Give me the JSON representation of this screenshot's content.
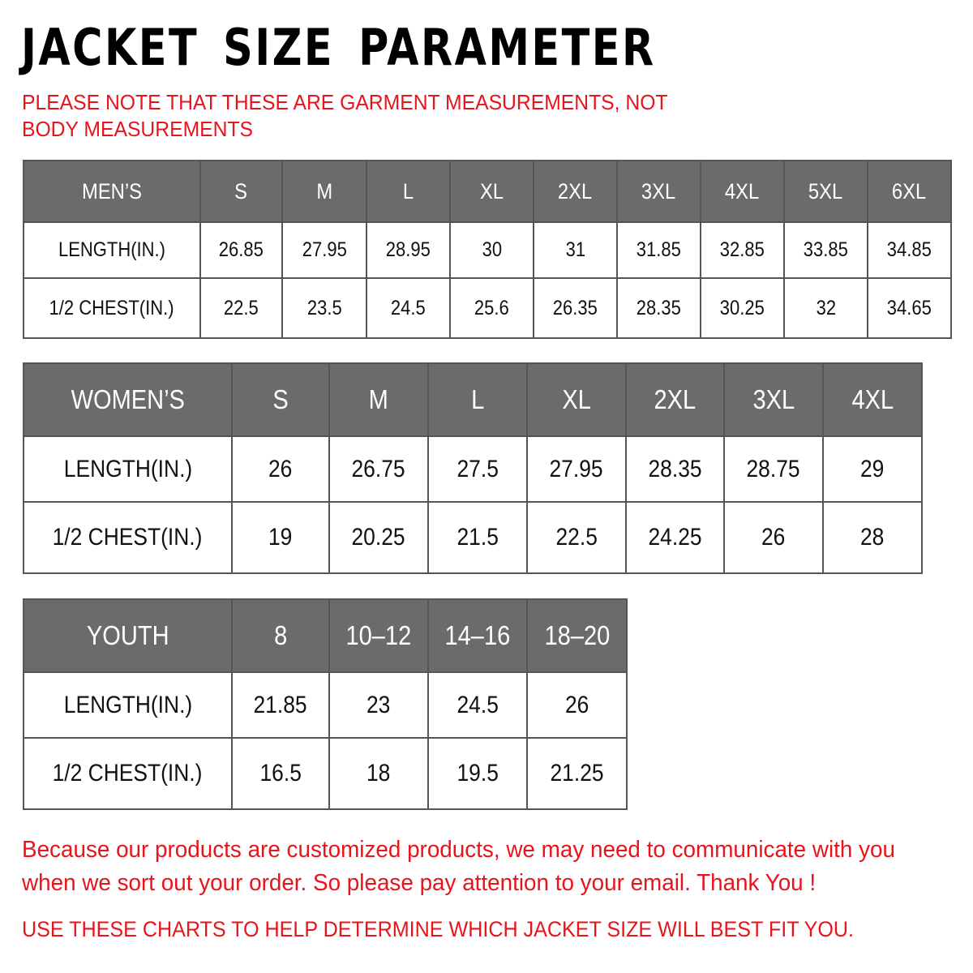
{
  "title": "JACKET SIZE PARAMETER",
  "note": "PLEASE NOTE THAT THESE ARE GARMENT MEASUREMENTS, NOT BODY MEASUREMENTS",
  "tables": {
    "men": {
      "header": [
        "MEN’S",
        "S",
        "M",
        "L",
        "XL",
        "2XL",
        "3XL",
        "4XL",
        "5XL",
        "6XL"
      ],
      "rows": [
        [
          "LENGTH(IN.)",
          "26.85",
          "27.95",
          "28.95",
          "30",
          "31",
          "31.85",
          "32.85",
          "33.85",
          "34.85"
        ],
        [
          "1/2 CHEST(IN.)",
          "22.5",
          "23.5",
          "24.5",
          "25.6",
          "26.35",
          "28.35",
          "30.25",
          "32",
          "34.65"
        ]
      ]
    },
    "women": {
      "header": [
        "WOMEN’S",
        "S",
        "M",
        "L",
        "XL",
        "2XL",
        "3XL",
        "4XL"
      ],
      "rows": [
        [
          "LENGTH(IN.)",
          "26",
          "26.75",
          "27.5",
          "27.95",
          "28.35",
          "28.75",
          "29"
        ],
        [
          "1/2 CHEST(IN.)",
          "19",
          "20.25",
          "21.5",
          "22.5",
          "24.25",
          "26",
          "28"
        ]
      ]
    },
    "youth": {
      "header": [
        "YOUTH",
        "8",
        "10–12",
        "14–16",
        "18–20"
      ],
      "rows": [
        [
          "LENGTH(IN.)",
          "21.85",
          "23",
          "24.5",
          "26"
        ],
        [
          "1/2 CHEST(IN.)",
          "16.5",
          "18",
          "19.5",
          "21.25"
        ]
      ]
    }
  },
  "footer": {
    "message": "Because our products are customized products, we may need to communicate with you when we sort out your order. So please pay attention to your email. Thank You !",
    "advice": "USE THESE CHARTS TO HELP DETERMINE WHICH JACKET SIZE WILL BEST FIT YOU."
  },
  "colors": {
    "header_bg": "#6b6b6b",
    "accent_red": "#e8141b"
  }
}
